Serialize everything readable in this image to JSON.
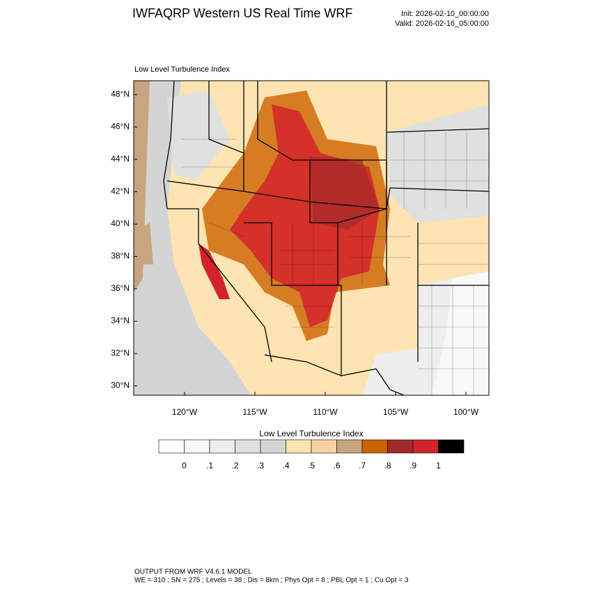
{
  "header": {
    "title": "IWFAQRP Western US Real Time WRF",
    "init": "Init: 2026-02-10_00:00:00",
    "valid": "Valid: 2026-02-16_05:00:00"
  },
  "map": {
    "title": "Low Level Turbulence Index",
    "lat_labels": [
      "48°N",
      "46°N",
      "44°N",
      "42°N",
      "40°N",
      "38°N",
      "36°N",
      "34°N",
      "32°N",
      "30°N"
    ],
    "lon_labels": [
      "120°W",
      "115°W",
      "110°W",
      "105°W",
      "100°W"
    ]
  },
  "colorbar": {
    "title": "Low Level Turbulence Index",
    "colors": [
      "#ffffff",
      "#f8f8f8",
      "#eeeeee",
      "#e0e0e0",
      "#d4d4d4",
      "#fde4b2",
      "#f8d3a0",
      "#c8a57e",
      "#cc6300",
      "#a32a2a",
      "#d2232a",
      "#000000"
    ],
    "labels": [
      "0",
      ".1",
      ".2",
      ".3",
      ".4",
      ".5",
      ".6",
      ".7",
      ".8",
      ".9",
      "1"
    ]
  },
  "footer": {
    "line1": "OUTPUT FROM WRF V4.6.1 MODEL",
    "line2": "WE = 310 ; SN = 275 ; Levels = 38 ; Dis = 8km ; Phys Opt = 8 ; PBL Opt = 1 ; Cu Opt = 3"
  }
}
